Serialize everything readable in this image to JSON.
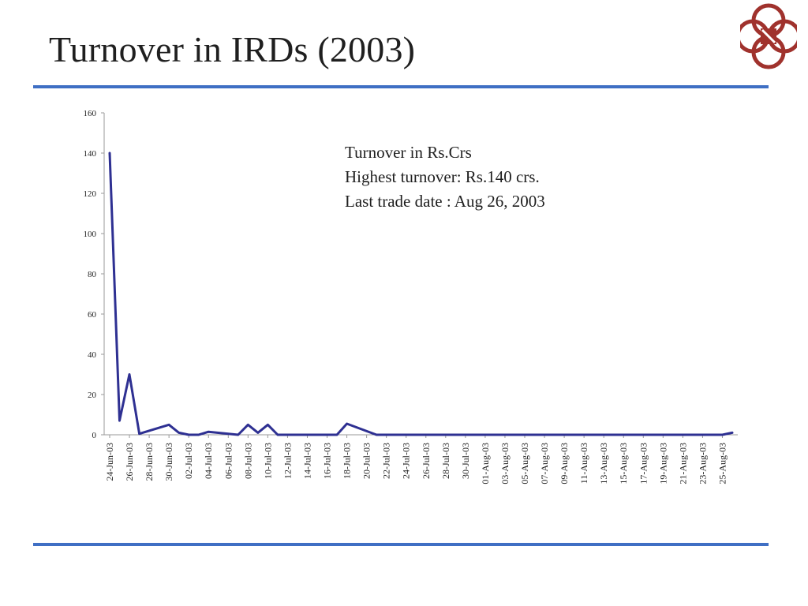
{
  "slide": {
    "title": "Turnover in IRDs (2003)",
    "rule_color": "#3f6fc4"
  },
  "logo": {
    "icon": "emblem-icon",
    "primary_color": "#a0322d"
  },
  "annotation": {
    "line1": "Turnover in Rs.Crs",
    "line2": "Highest turnover: Rs.140 crs.",
    "line3": "Last trade date : Aug 26, 2003"
  },
  "chart_data": {
    "type": "line",
    "ylim": [
      0,
      160
    ],
    "yticks": [
      0,
      20,
      40,
      60,
      80,
      100,
      120,
      140,
      160
    ],
    "grid": false,
    "line_color": "#2e3092",
    "categories": [
      "24-Jun-03",
      "26-Jun-03",
      "28-Jun-03",
      "30-Jun-03",
      "02-Jul-03",
      "04-Jul-03",
      "06-Jul-03",
      "08-Jul-03",
      "10-Jul-03",
      "12-Jul-03",
      "14-Jul-03",
      "16-Jul-03",
      "18-Jul-03",
      "20-Jul-03",
      "22-Jul-03",
      "24-Jul-03",
      "26-Jul-03",
      "28-Jul-03",
      "30-Jul-03",
      "01-Aug-03",
      "03-Aug-03",
      "05-Aug-03",
      "07-Aug-03",
      "09-Aug-03",
      "11-Aug-03",
      "13-Aug-03",
      "15-Aug-03",
      "17-Aug-03",
      "19-Aug-03",
      "21-Aug-03",
      "23-Aug-03",
      "25-Aug-03"
    ],
    "x": [
      "24-Jun-03",
      "25-Jun-03",
      "26-Jun-03",
      "27-Jun-03",
      "30-Jun-03",
      "01-Jul-03",
      "02-Jul-03",
      "03-Jul-03",
      "04-Jul-03",
      "07-Jul-03",
      "08-Jul-03",
      "09-Jul-03",
      "10-Jul-03",
      "11-Jul-03",
      "14-Jul-03",
      "15-Jul-03",
      "16-Jul-03",
      "17-Jul-03",
      "18-Jul-03",
      "21-Jul-03",
      "22-Jul-03",
      "23-Jul-03",
      "24-Jul-03",
      "25-Jul-03",
      "28-Jul-03",
      "29-Jul-03",
      "30-Jul-03",
      "31-Jul-03",
      "01-Aug-03",
      "04-Aug-03",
      "05-Aug-03",
      "06-Aug-03",
      "07-Aug-03",
      "08-Aug-03",
      "11-Aug-03",
      "12-Aug-03",
      "13-Aug-03",
      "14-Aug-03",
      "18-Aug-03",
      "19-Aug-03",
      "20-Aug-03",
      "21-Aug-03",
      "22-Aug-03",
      "25-Aug-03",
      "26-Aug-03"
    ],
    "values": [
      140,
      7,
      30,
      0.5,
      5,
      1,
      0,
      0,
      1.5,
      0,
      5,
      1,
      5,
      0,
      0,
      0,
      0,
      0,
      5.5,
      0,
      0,
      0,
      0,
      0,
      0,
      0,
      0,
      0,
      0,
      0,
      0,
      0,
      0,
      0,
      0,
      0,
      0,
      0,
      0,
      0,
      0,
      0,
      0,
      0,
      1
    ],
    "series": [
      {
        "values": [
          140,
          7,
          30,
          0.5,
          5,
          1,
          0,
          0,
          1.5,
          0,
          5,
          1,
          5,
          0,
          0,
          0,
          0,
          0,
          5.5,
          0,
          0,
          0,
          0,
          0,
          0,
          0,
          0,
          0,
          0,
          0,
          0,
          0,
          0,
          0,
          0,
          0,
          0,
          0,
          0,
          0,
          0,
          0,
          0,
          0,
          1
        ]
      }
    ]
  }
}
